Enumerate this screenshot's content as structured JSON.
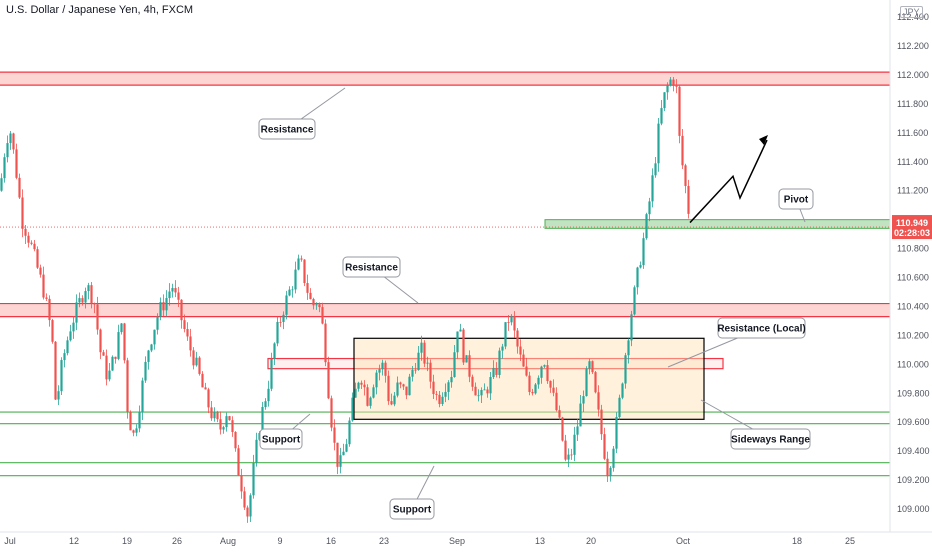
{
  "header": {
    "title": "U.S. Dollar / Japanese Yen, 4h, FXCM",
    "currency": "JPY"
  },
  "colors": {
    "up": "#26a69a",
    "down": "#ef5350",
    "resistance_fill": "rgba(244,67,54,0.22)",
    "resistance_line": "#f23645",
    "support_line": "#4caf50",
    "pivot_fill": "rgba(76,175,80,0.35)",
    "range_fill": "rgba(255,224,178,0.45)",
    "current_price_bg": "#ef5350"
  },
  "current_price": {
    "value": "110.949",
    "countdown": "02:28:03"
  },
  "annotations": {
    "resistance_top": "Resistance",
    "resistance_mid": "Resistance",
    "resistance_local": "Resistance (Local)",
    "pivot": "Pivot",
    "support_mid": "Support",
    "support_bottom": "Support",
    "sideways_range": "Sideways Range"
  },
  "chart_data": {
    "type": "candlestick",
    "title": "U.S. Dollar / Japanese Yen, 4h, FXCM",
    "y_axis": {
      "ticks": [
        "112.400",
        "112.200",
        "112.000",
        "111.800",
        "111.600",
        "111.400",
        "111.200",
        "111.000",
        "110.800",
        "110.600",
        "110.400",
        "110.200",
        "110.000",
        "109.800",
        "109.600",
        "109.400",
        "109.200",
        "109.000"
      ],
      "range": [
        108.8,
        112.55
      ]
    },
    "x_axis": {
      "ticks": [
        "Jul",
        "12",
        "19",
        "26",
        "Aug",
        "9",
        "16",
        "23",
        "Sep",
        "13",
        "20",
        "Oct",
        "18",
        "25"
      ]
    },
    "zones": [
      {
        "name": "Resistance",
        "kind": "resistance",
        "low": 111.93,
        "high": 112.02
      },
      {
        "name": "Resistance",
        "kind": "resistance",
        "low": 110.33,
        "high": 110.42
      },
      {
        "name": "Resistance (Local)",
        "kind": "resistance-local",
        "low": 109.97,
        "high": 110.04
      },
      {
        "name": "Pivot",
        "kind": "pivot",
        "low": 110.94,
        "high": 111.0
      },
      {
        "name": "Support",
        "kind": "support",
        "level": 109.67
      },
      {
        "name": "Support",
        "kind": "support",
        "level": 109.59
      },
      {
        "name": "Support",
        "kind": "support",
        "level": 109.32
      },
      {
        "name": "Support",
        "kind": "support",
        "level": 109.23
      }
    ],
    "sideways_range": {
      "low": 109.62,
      "high": 110.18,
      "from": "Aug 18",
      "to": "Oct 3"
    },
    "projection": [
      110.98,
      111.3,
      111.15,
      111.55
    ],
    "last_price": 110.949,
    "price_path": [
      [
        0,
        111.2
      ],
      [
        6,
        111.55
      ],
      [
        10,
        111.63
      ],
      [
        16,
        111.35
      ],
      [
        22,
        111.0
      ],
      [
        30,
        110.85
      ],
      [
        38,
        110.65
      ],
      [
        44,
        110.5
      ],
      [
        52,
        110.2
      ],
      [
        56,
        109.7
      ],
      [
        62,
        110.0
      ],
      [
        70,
        110.25
      ],
      [
        78,
        110.4
      ],
      [
        86,
        110.55
      ],
      [
        94,
        110.45
      ],
      [
        100,
        110.1
      ],
      [
        108,
        109.9
      ],
      [
        116,
        110.1
      ],
      [
        122,
        110.3
      ],
      [
        128,
        109.65
      ],
      [
        134,
        109.5
      ],
      [
        140,
        109.75
      ],
      [
        148,
        110.1
      ],
      [
        158,
        110.35
      ],
      [
        166,
        110.45
      ],
      [
        172,
        110.55
      ],
      [
        180,
        110.35
      ],
      [
        188,
        110.15
      ],
      [
        196,
        110.0
      ],
      [
        204,
        109.8
      ],
      [
        212,
        109.65
      ],
      [
        220,
        109.55
      ],
      [
        228,
        109.7
      ],
      [
        236,
        109.35
      ],
      [
        242,
        109.15
      ],
      [
        248,
        108.95
      ],
      [
        254,
        109.3
      ],
      [
        260,
        109.6
      ],
      [
        268,
        109.85
      ],
      [
        276,
        110.2
      ],
      [
        284,
        110.4
      ],
      [
        292,
        110.55
      ],
      [
        300,
        110.72
      ],
      [
        306,
        110.55
      ],
      [
        312,
        110.4
      ],
      [
        318,
        110.45
      ],
      [
        324,
        110.2
      ],
      [
        330,
        109.7
      ],
      [
        336,
        109.35
      ],
      [
        340,
        109.3
      ],
      [
        346,
        109.45
      ],
      [
        352,
        109.7
      ],
      [
        360,
        109.95
      ],
      [
        368,
        109.75
      ],
      [
        376,
        109.95
      ],
      [
        384,
        110.0
      ],
      [
        390,
        109.7
      ],
      [
        398,
        109.85
      ],
      [
        406,
        109.8
      ],
      [
        414,
        110.0
      ],
      [
        422,
        110.1
      ],
      [
        430,
        109.9
      ],
      [
        438,
        109.75
      ],
      [
        444,
        109.85
      ],
      [
        452,
        109.95
      ],
      [
        458,
        110.3
      ],
      [
        464,
        110.05
      ],
      [
        472,
        109.9
      ],
      [
        480,
        109.75
      ],
      [
        488,
        109.85
      ],
      [
        496,
        109.95
      ],
      [
        504,
        110.2
      ],
      [
        510,
        110.35
      ],
      [
        518,
        110.1
      ],
      [
        524,
        109.95
      ],
      [
        530,
        109.8
      ],
      [
        536,
        109.9
      ],
      [
        544,
        110.05
      ],
      [
        550,
        109.85
      ],
      [
        556,
        109.7
      ],
      [
        562,
        109.5
      ],
      [
        566,
        109.3
      ],
      [
        572,
        109.4
      ],
      [
        578,
        109.6
      ],
      [
        584,
        109.85
      ],
      [
        590,
        110.0
      ],
      [
        596,
        109.75
      ],
      [
        602,
        109.5
      ],
      [
        608,
        109.25
      ],
      [
        612,
        109.4
      ],
      [
        618,
        109.65
      ],
      [
        624,
        110.0
      ],
      [
        630,
        110.3
      ],
      [
        636,
        110.55
      ],
      [
        642,
        110.8
      ],
      [
        648,
        111.05
      ],
      [
        654,
        111.35
      ],
      [
        660,
        111.7
      ],
      [
        666,
        111.9
      ],
      [
        672,
        111.98
      ],
      [
        676,
        111.95
      ],
      [
        680,
        111.5
      ],
      [
        684,
        111.3
      ],
      [
        688,
        111.1
      ],
      [
        690,
        110.96
      ]
    ]
  }
}
